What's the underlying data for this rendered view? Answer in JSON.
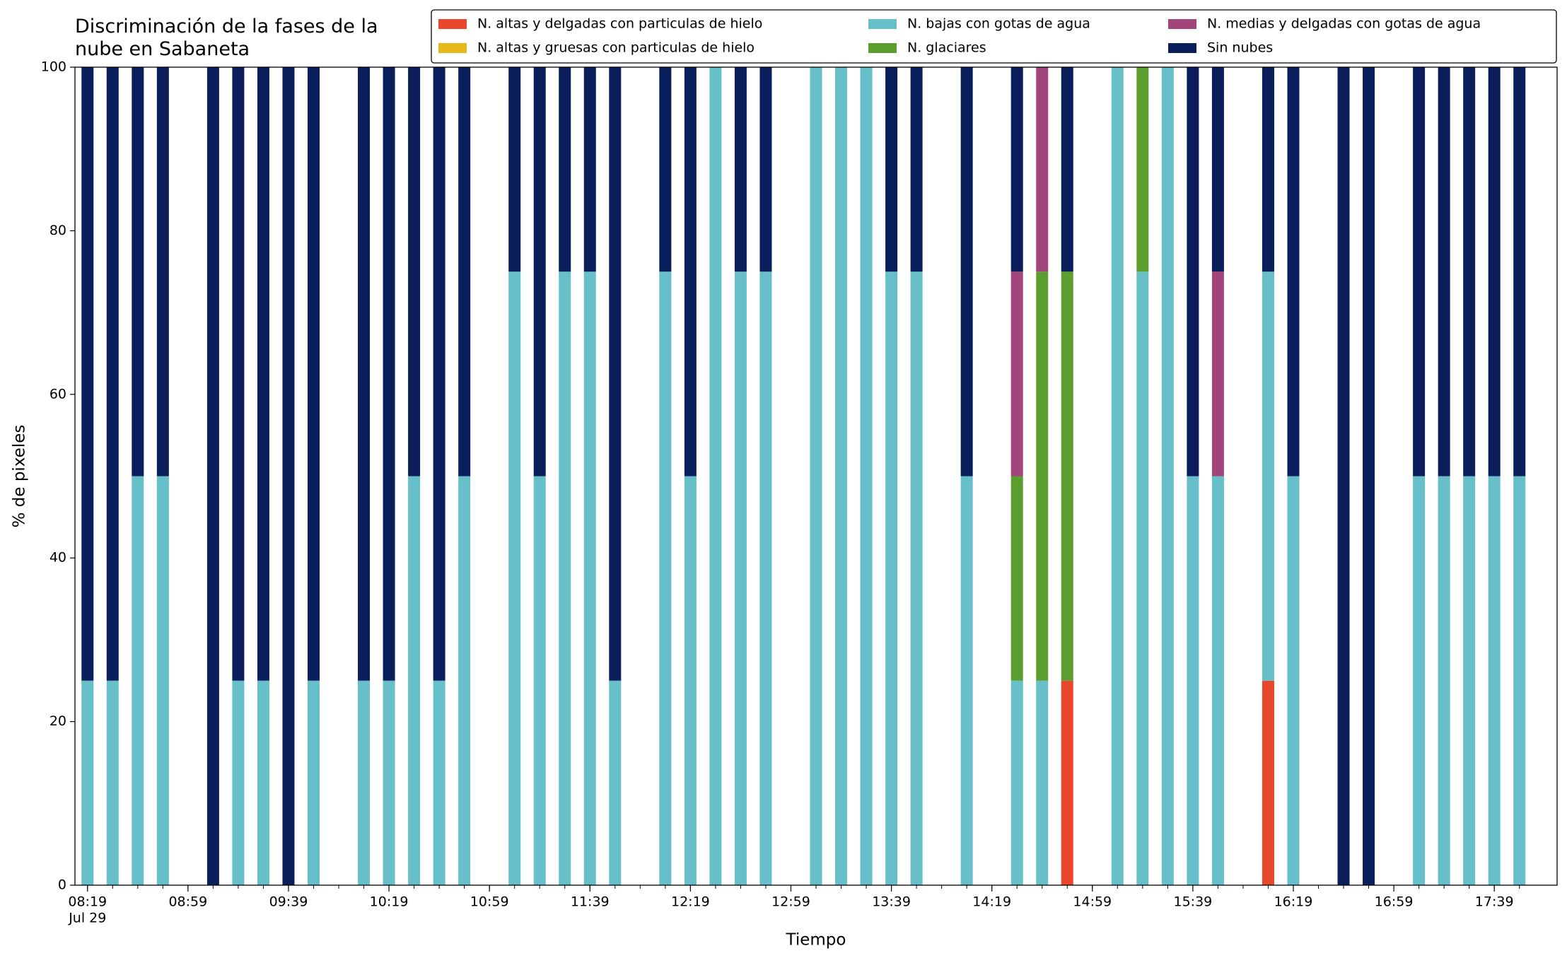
{
  "chart_data": {
    "type": "stacked_bar",
    "title": "Discriminación de la fases de la nube en Sabaneta",
    "xlabel": "Tiempo",
    "ylabel": "% de pixeles",
    "x": [
      "08:19",
      "08:29",
      "08:39",
      "08:49",
      "08:59",
      "09:09",
      "09:19",
      "09:29",
      "09:39",
      "09:49",
      "09:59",
      "10:09",
      "10:19",
      "10:29",
      "10:39",
      "10:49",
      "10:59",
      "11:09",
      "11:19",
      "11:29",
      "11:39",
      "11:49",
      "11:59",
      "12:09",
      "12:19",
      "12:29",
      "12:39",
      "12:49",
      "12:59",
      "13:09",
      "13:19",
      "13:29",
      "13:39",
      "13:49",
      "13:59",
      "14:09",
      "14:19",
      "14:29",
      "14:39",
      "14:49",
      "14:59",
      "15:09",
      "15:19",
      "15:29",
      "15:39",
      "15:49",
      "15:59",
      "16:09",
      "16:19",
      "16:29",
      "16:39",
      "16:49",
      "16:59",
      "17:09",
      "17:19",
      "17:29",
      "17:39",
      "17:49"
    ],
    "x_date_label": "Jul 29",
    "xlim": [
      "08:14",
      "18:04"
    ],
    "xticks": [
      "08:19",
      "08:59",
      "09:39",
      "10:19",
      "10:59",
      "11:39",
      "12:19",
      "12:59",
      "13:39",
      "14:19",
      "14:59",
      "15:39",
      "16:19",
      "16:59",
      "17:39"
    ],
    "ylim": [
      0,
      100
    ],
    "yticks": [
      0,
      20,
      40,
      60,
      80,
      100
    ],
    "grid": false,
    "series": [
      {
        "name": "N. altas y delgadas con particulas de hielo",
        "color": "#e8472b",
        "values": [
          0,
          0,
          0,
          0,
          0,
          0,
          0,
          0,
          0,
          0,
          0,
          0,
          0,
          0,
          0,
          0,
          0,
          0,
          0,
          0,
          0,
          0,
          0,
          0,
          0,
          0,
          0,
          0,
          0,
          0,
          0,
          0,
          0,
          0,
          0,
          0,
          0,
          0,
          0,
          25,
          0,
          0,
          0,
          0,
          0,
          0,
          0,
          25,
          0,
          0,
          0,
          0,
          0,
          0,
          0,
          0,
          0,
          0
        ]
      },
      {
        "name": "N. altas y gruesas con particulas de hielo",
        "color": "#e6b819",
        "values": [
          0,
          0,
          0,
          0,
          0,
          0,
          0,
          0,
          0,
          0,
          0,
          0,
          0,
          0,
          0,
          0,
          0,
          0,
          0,
          0,
          0,
          0,
          0,
          0,
          0,
          0,
          0,
          0,
          0,
          0,
          0,
          0,
          0,
          0,
          0,
          0,
          0,
          0,
          0,
          0,
          0,
          0,
          0,
          0,
          0,
          0,
          0,
          0,
          0,
          0,
          0,
          0,
          0,
          0,
          0,
          0,
          0,
          0
        ]
      },
      {
        "name": "N. bajas con gotas de agua",
        "color": "#67bfca",
        "values": [
          25,
          25,
          50,
          50,
          0,
          0,
          25,
          25,
          0,
          25,
          0,
          25,
          25,
          50,
          25,
          50,
          0,
          75,
          50,
          75,
          75,
          25,
          0,
          75,
          50,
          100,
          75,
          75,
          0,
          100,
          100,
          100,
          75,
          75,
          0,
          50,
          0,
          25,
          25,
          0,
          0,
          100,
          75,
          100,
          50,
          50,
          0,
          50,
          50,
          0,
          0,
          0,
          0,
          50,
          50,
          50,
          50,
          50
        ]
      },
      {
        "name": "N. glaciares",
        "color": "#5c9e2e",
        "values": [
          0,
          0,
          0,
          0,
          0,
          0,
          0,
          0,
          0,
          0,
          0,
          0,
          0,
          0,
          0,
          0,
          0,
          0,
          0,
          0,
          0,
          0,
          0,
          0,
          0,
          0,
          0,
          0,
          0,
          0,
          0,
          0,
          0,
          0,
          0,
          0,
          0,
          25,
          50,
          50,
          0,
          0,
          25,
          0,
          0,
          0,
          0,
          0,
          0,
          0,
          0,
          0,
          0,
          0,
          0,
          0,
          0,
          0
        ]
      },
      {
        "name": "N. medias y delgadas con gotas de agua",
        "color": "#a1457a",
        "values": [
          0,
          0,
          0,
          0,
          0,
          0,
          0,
          0,
          0,
          0,
          0,
          0,
          0,
          0,
          0,
          0,
          0,
          0,
          0,
          0,
          0,
          0,
          0,
          0,
          0,
          0,
          0,
          0,
          0,
          0,
          0,
          0,
          0,
          0,
          0,
          0,
          0,
          25,
          25,
          0,
          0,
          0,
          0,
          0,
          0,
          25,
          0,
          0,
          0,
          0,
          0,
          0,
          0,
          0,
          0,
          0,
          0,
          0
        ]
      },
      {
        "name": "Sin nubes",
        "color": "#0a1e5c",
        "values": [
          75,
          75,
          50,
          50,
          0,
          100,
          75,
          75,
          100,
          75,
          0,
          75,
          75,
          50,
          75,
          50,
          0,
          25,
          50,
          25,
          25,
          75,
          0,
          25,
          50,
          0,
          25,
          25,
          0,
          0,
          0,
          0,
          25,
          25,
          0,
          50,
          0,
          25,
          0,
          25,
          0,
          0,
          0,
          0,
          50,
          25,
          0,
          25,
          50,
          0,
          100,
          100,
          0,
          50,
          50,
          50,
          50,
          50
        ]
      }
    ]
  }
}
